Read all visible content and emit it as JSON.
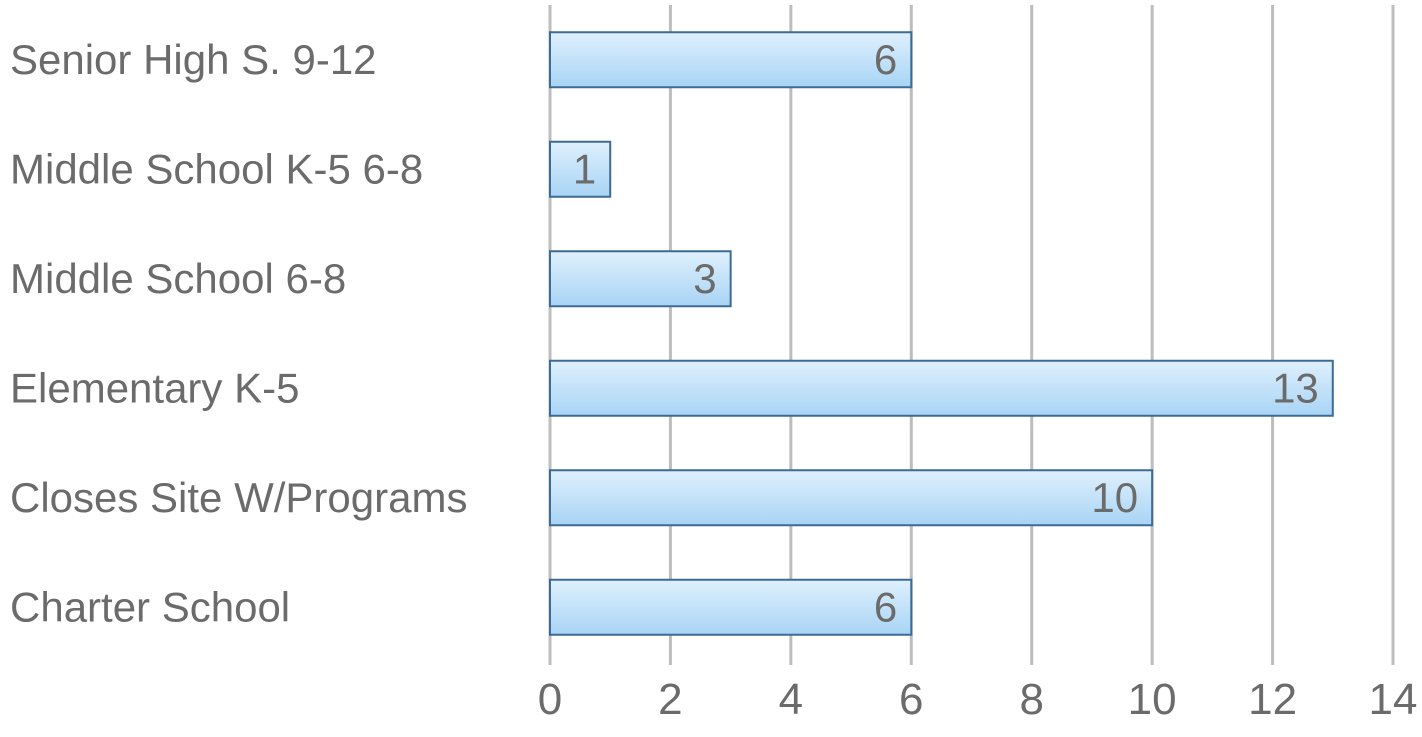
{
  "chart_data": {
    "type": "bar",
    "orientation": "horizontal",
    "categories": [
      "Senior High S. 9-12",
      "Middle School K-5 6-8",
      "Middle School 6-8",
      "Elementary K-5",
      "Closes Site W/Programs",
      "Charter School"
    ],
    "values": [
      6,
      1,
      3,
      13,
      10,
      6
    ],
    "xlim": [
      0,
      14
    ],
    "xticks": [
      "0",
      "2",
      "4",
      "6",
      "8",
      "10",
      "12",
      "14"
    ],
    "xlabel": "",
    "ylabel": "",
    "title": "",
    "data_labels": true,
    "grid": "vertical",
    "legend": "none",
    "colors": {
      "bar_fill_top": "#dff0fd",
      "bar_fill_bottom": "#a8d4f5",
      "bar_stroke": "#3d6b93",
      "grid": "#bdbdbd",
      "text": "#6b6b6b"
    }
  }
}
